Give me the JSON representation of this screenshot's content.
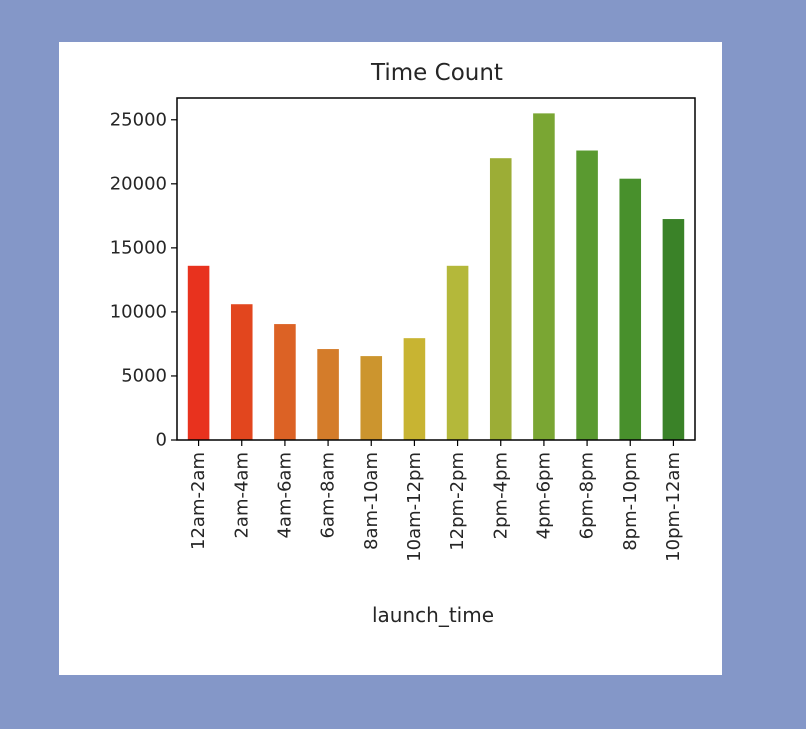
{
  "chart_data": {
    "type": "bar",
    "title": "Time Count",
    "xlabel": "launch_time",
    "ylabel": "",
    "categories": [
      "12am-2am",
      "2am-4am",
      "4am-6am",
      "6am-8am",
      "8am-10am",
      "10am-12pm",
      "12pm-2pm",
      "2pm-4pm",
      "4pm-6pm",
      "6pm-8pm",
      "8pm-10pm",
      "10pm-12am"
    ],
    "values": [
      13600,
      10600,
      9050,
      7100,
      6550,
      7950,
      13600,
      22000,
      25500,
      22600,
      20400,
      17250
    ],
    "colors": [
      "#e8321e",
      "#e2461e",
      "#dc6225",
      "#d47c2a",
      "#cc952e",
      "#c8b432",
      "#b4b83a",
      "#9cad36",
      "#7aa633",
      "#5a9a30",
      "#48902c",
      "#3a8228"
    ],
    "ylim": [
      0,
      26700
    ],
    "yticks": [
      0,
      5000,
      10000,
      15000,
      20000,
      25000
    ],
    "grid": false,
    "legend": "none"
  }
}
